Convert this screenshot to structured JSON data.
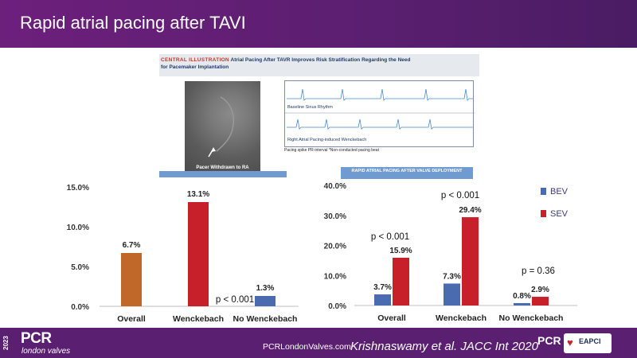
{
  "slide": {
    "title": "Rapid atrial pacing after TAVI"
  },
  "central_illustration": {
    "label": "CENTRAL ILLUSTRATION",
    "text_line1": "Atrial Pacing After TAVR Improves Risk Stratification Regarding the Need",
    "text_line2": "for Pacemaker Implantation",
    "fluoro_label": "Pacer Withdrawn to RA",
    "ecg_label_top": "Baseline Sinus Rhythm",
    "ecg_label_bottom": "Right Atrial Pacing-induced Wenckebach",
    "legend": "Pacing spike   PR-interval   *Non-conducted pacing beat",
    "right_banner": "RAPID ATRIAL PACING AFTER VALVE DEPLOYMENT"
  },
  "chart_data": [
    {
      "type": "bar",
      "categories": [
        "Overall",
        "Wenckebach",
        "No Wenckebach"
      ],
      "values": [
        6.7,
        13.1,
        1.3
      ],
      "data_labels": [
        "6.7%",
        "13.1%",
        "1.3%"
      ],
      "colors": [
        "#c0682a",
        "#c8202b",
        "#4a6bb0"
      ],
      "ylim": [
        0,
        15
      ],
      "yticks": [
        "0.0%",
        "5.0%",
        "10.0%",
        "15.0%"
      ],
      "annotations": [
        "p < 0.001"
      ],
      "grid": false
    },
    {
      "type": "bar",
      "categories": [
        "Overall",
        "Wenckebach",
        "No Wenckebach"
      ],
      "series": [
        {
          "name": "BEV",
          "values": [
            3.7,
            7.3,
            0.8
          ],
          "data_labels": [
            "3.7%",
            "7.3%",
            "0.8%"
          ],
          "color": "#4a6bb0"
        },
        {
          "name": "SEV",
          "values": [
            15.9,
            29.4,
            2.9
          ],
          "data_labels": [
            "15.9%",
            "29.4%",
            "2.9%"
          ],
          "color": "#c8202b"
        }
      ],
      "ylim": [
        0,
        40
      ],
      "yticks": [
        "0.0%",
        "10.0%",
        "20.0%",
        "30.0%",
        "40.0%"
      ],
      "annotations": [
        "p < 0.001",
        "p < 0.001",
        "p = 0.36"
      ],
      "legend": "right",
      "grid": false
    }
  ],
  "footer": {
    "year": "2023",
    "brand": "PCR",
    "brand_sub": "london valves",
    "url": "PCRLondonValves.com",
    "citation": "Krishnaswamy et al. JACC Int 2020",
    "badge": "PCR",
    "partner": "EAPCI"
  }
}
